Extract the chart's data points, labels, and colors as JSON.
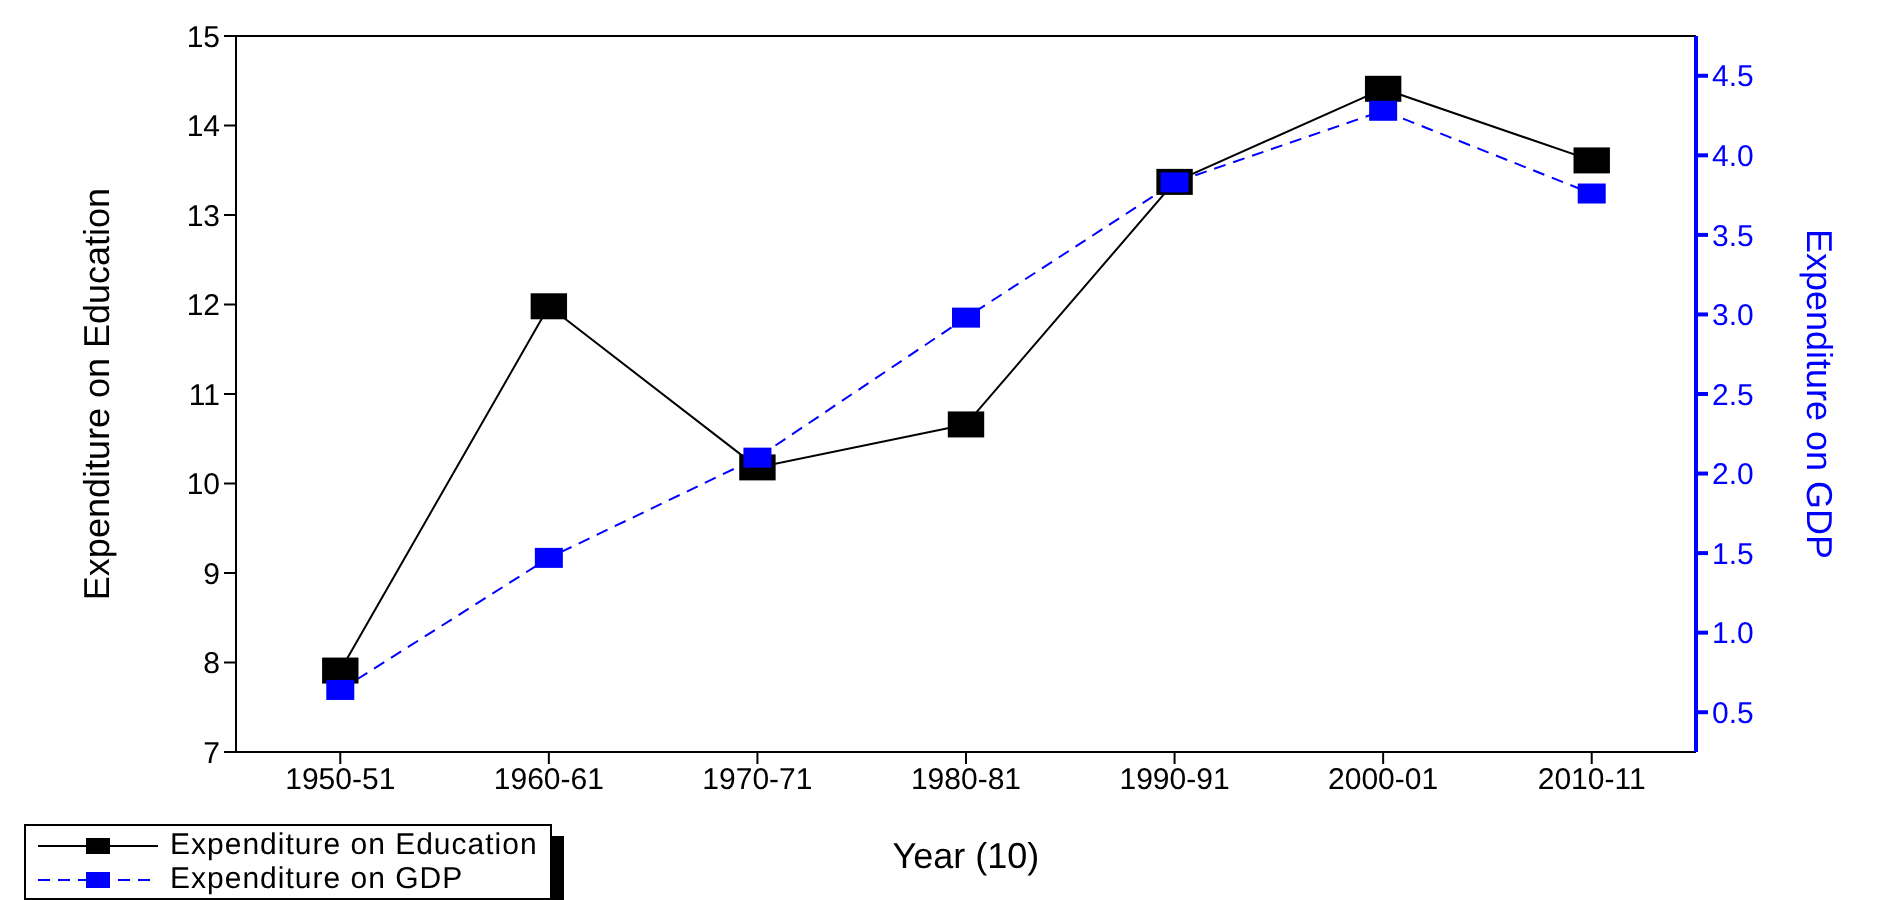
{
  "chart_data": {
    "type": "line",
    "xlabel": "Year (10)",
    "ylabel": "Expenditure on Education",
    "y2label": "Expenditure on GDP",
    "categories": [
      "1950-51",
      "1960-61",
      "1970-71",
      "1980-81",
      "1990-91",
      "2000-01",
      "2010-11"
    ],
    "series": [
      {
        "name": "Expenditure on Education",
        "color": "#000000",
        "line_style": "solid",
        "values": [
          7.91,
          11.98,
          10.18,
          10.66,
          13.37,
          14.41,
          13.61
        ]
      },
      {
        "name": "Expenditure on GDP",
        "color": "#0000ff",
        "line_style": "dashed",
        "axis": "y2",
        "values": [
          0.64,
          1.47,
          2.1,
          2.98,
          3.83,
          4.28,
          3.76
        ]
      }
    ],
    "ylim": [
      7,
      15
    ],
    "yticks": [
      7,
      8,
      9,
      10,
      11,
      12,
      13,
      14,
      15
    ],
    "y2lim": [
      0.25,
      4.75
    ],
    "y2ticks": [
      {
        "value": 0.5,
        "label": "0.5"
      },
      {
        "value": 1,
        "label": "1.0"
      },
      {
        "value": 1.5,
        "label": "1.5"
      },
      {
        "value": 2,
        "label": "2.0"
      },
      {
        "value": 2.5,
        "label": "2.5"
      },
      {
        "value": 3,
        "label": "3.0"
      },
      {
        "value": 3.5,
        "label": "3.5"
      },
      {
        "value": 4,
        "label": "4.0"
      },
      {
        "value": 4.5,
        "label": "4.5"
      }
    ],
    "marker": "square",
    "legend": "bottom left"
  }
}
